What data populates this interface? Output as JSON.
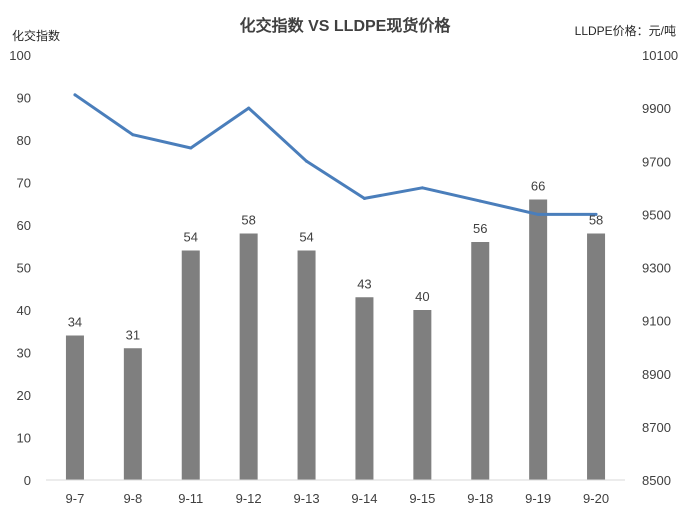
{
  "chart_data": {
    "type": "bar+line",
    "title": "化交指数 VS LLDPE现货价格",
    "categories": [
      "9-7",
      "9-8",
      "9-11",
      "9-12",
      "9-13",
      "9-14",
      "9-15",
      "9-18",
      "9-19",
      "9-20"
    ],
    "series": [
      {
        "name": "化交指数",
        "type": "bar",
        "axis": "left",
        "color": "#7f7f7f",
        "values": [
          34,
          31,
          54,
          58,
          54,
          43,
          40,
          56,
          66,
          58
        ]
      },
      {
        "name": "LLDPE价格",
        "type": "line",
        "axis": "right",
        "color": "#4a7ebb",
        "values": [
          9950,
          9800,
          9750,
          9900,
          9700,
          9560,
          9600,
          9550,
          9500,
          9500
        ]
      }
    ],
    "left_axis": {
      "label": "化交指数",
      "range": [
        0,
        100
      ],
      "ticks": [
        "0",
        "10",
        "20",
        "30",
        "40",
        "50",
        "60",
        "70",
        "80",
        "90",
        "100"
      ]
    },
    "right_axis": {
      "label": "LLDPE价格：元/吨",
      "range": [
        8500,
        10100
      ],
      "ticks": [
        "8500",
        "8700",
        "8900",
        "9100",
        "9300",
        "9500",
        "9700",
        "9900",
        "10100"
      ]
    },
    "grid": false,
    "legend": "none"
  }
}
